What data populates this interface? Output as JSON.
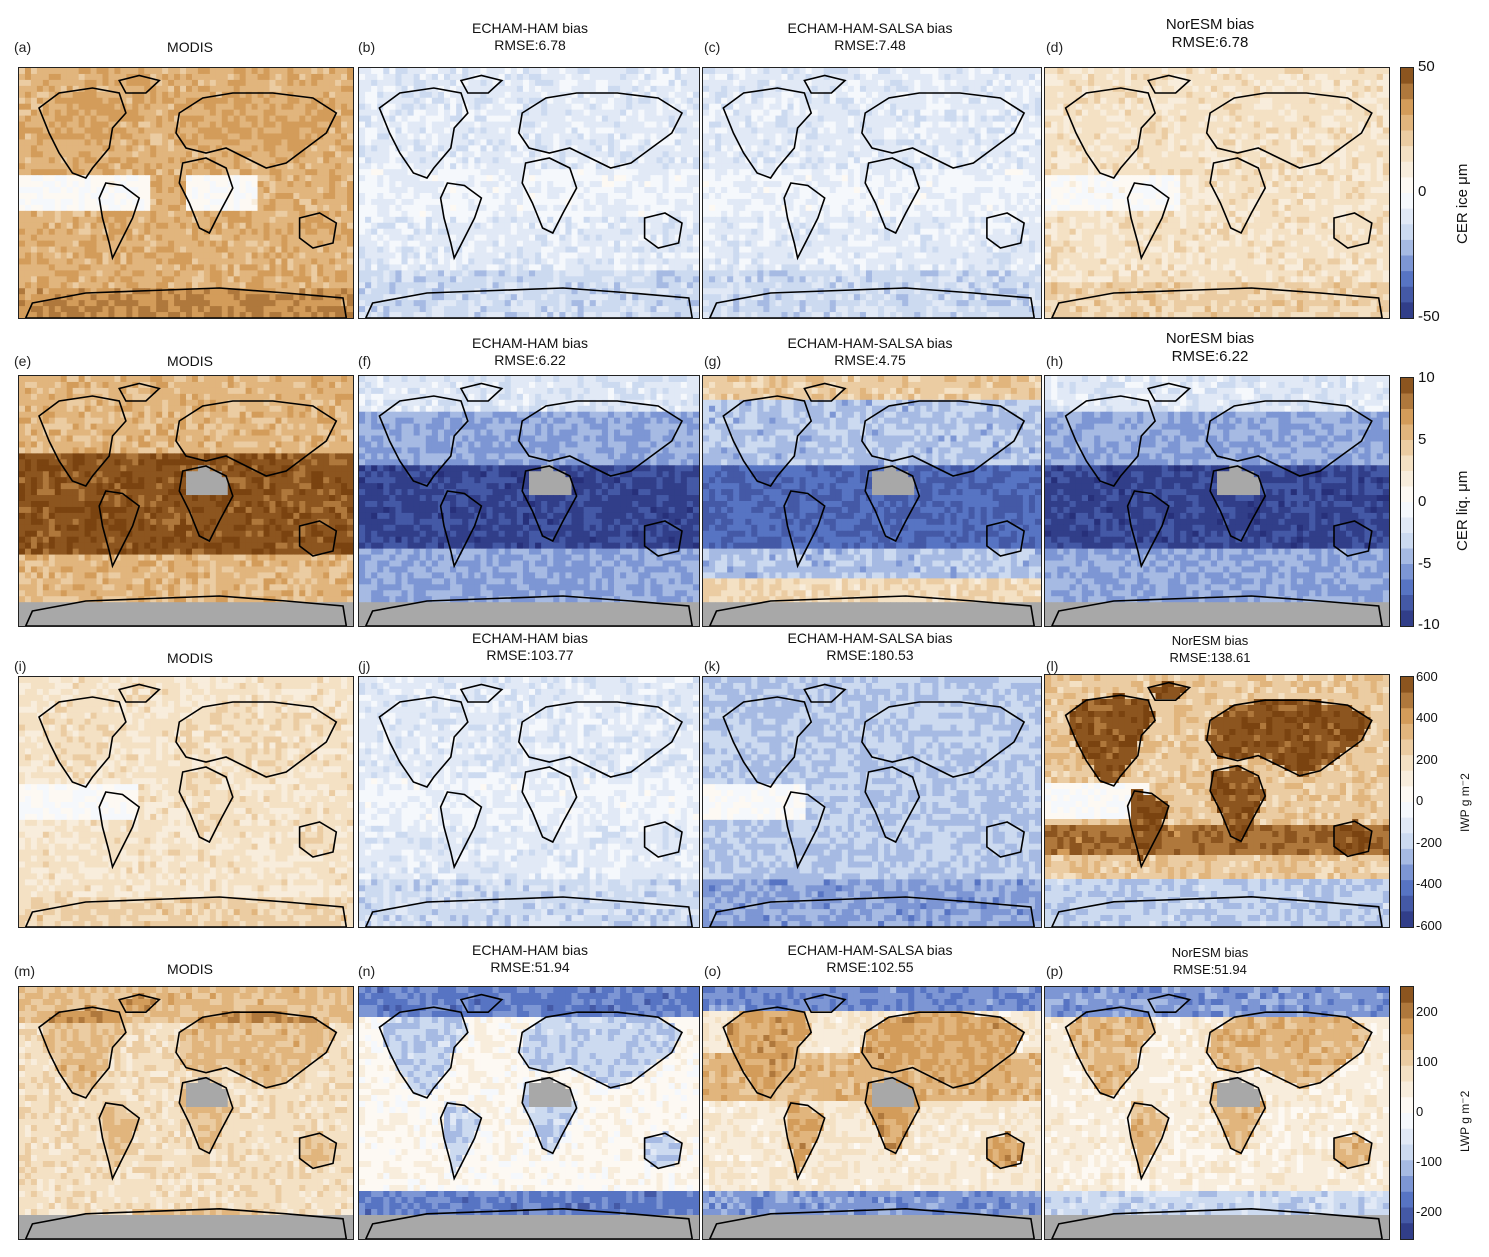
{
  "palette": {
    "negative_dark": "#27307a",
    "negative_mid": "#5a78c8",
    "negative_light": "#c9d8ef",
    "zero": "#ffffff",
    "positive_light": "#f3dfc0",
    "positive_mid": "#d9a25f",
    "positive_dark": "#7a4310",
    "land_mask": "#a8a8a8",
    "coast": "#000000"
  },
  "rows": [
    {
      "colorbar": {
        "label": "CER ice μm",
        "ticks": [
          "50",
          "0",
          "-50"
        ],
        "range": [
          -50,
          50
        ],
        "levels": 16,
        "label_size": "normal"
      },
      "panels": [
        {
          "letter": "(a)",
          "title": [
            "MODIS"
          ],
          "field": "modis-ice"
        },
        {
          "letter": "(b)",
          "title": [
            "ECHAM-HAM bias",
            "RMSE:6.78"
          ],
          "field": "slight-neg"
        },
        {
          "letter": "(c)",
          "title": [
            "ECHAM-HAM-SALSA bias",
            "RMSE:7.48"
          ],
          "field": "slight-neg"
        },
        {
          "letter": "(d)",
          "title": [
            "NorESM bias",
            "RMSE:6.78"
          ],
          "field": "pos-moderate"
        }
      ]
    },
    {
      "colorbar": {
        "label": "CER liq. μm",
        "ticks": [
          "10",
          "5",
          "0",
          "-5",
          "-10"
        ],
        "range": [
          -10,
          10
        ],
        "levels": 16,
        "label_size": "normal"
      },
      "panels": [
        {
          "letter": "(e)",
          "title": [
            "MODIS"
          ],
          "field": "modis-liq"
        },
        {
          "letter": "(f)",
          "title": [
            "ECHAM-HAM bias",
            "RMSE:6.22"
          ],
          "field": "strong-neg"
        },
        {
          "letter": "(g)",
          "title": [
            "ECHAM-HAM-SALSA bias",
            "RMSE:4.75"
          ],
          "field": "mixed-neg"
        },
        {
          "letter": "(h)",
          "title": [
            "NorESM bias",
            "RMSE:6.22"
          ],
          "field": "strong-neg"
        }
      ]
    },
    {
      "colorbar": {
        "label": "IWP g m⁻2",
        "ticks": [
          "600",
          "400",
          "200",
          "0",
          "-200",
          "-400",
          "-600"
        ],
        "range": [
          -600,
          600
        ],
        "levels": 16,
        "label_size": "small"
      },
      "panels": [
        {
          "letter": "(i)",
          "title": [
            "MODIS"
          ],
          "field": "modis-light"
        },
        {
          "letter": "(j)",
          "title": [
            "ECHAM-HAM bias",
            "RMSE:103.77"
          ],
          "field": "slight-neg"
        },
        {
          "letter": "(k)",
          "title": [
            "ECHAM-HAM-SALSA bias",
            "RMSE:180.53"
          ],
          "field": "mod-neg"
        },
        {
          "letter": "(l)",
          "title": [
            "NorESM bias",
            "RMSE:138.61"
          ],
          "field": "pos-strong"
        }
      ]
    },
    {
      "colorbar": {
        "label": "LWP g m⁻2",
        "ticks": [
          "200",
          "100",
          "0",
          "-100",
          "-200"
        ],
        "range": [
          -250,
          250
        ],
        "levels": 16,
        "label_size": "small"
      },
      "panels": [
        {
          "letter": "(m)",
          "title": [
            "MODIS"
          ],
          "field": "modis-lwp"
        },
        {
          "letter": "(n)",
          "title": [
            "ECHAM-HAM bias",
            "RMSE:51.94"
          ],
          "field": "mixed-lwp-n"
        },
        {
          "letter": "(o)",
          "title": [
            "ECHAM-HAM-SALSA bias",
            "RMSE:102.55"
          ],
          "field": "mixed-lwp-o"
        },
        {
          "letter": "(p)",
          "title": [
            "NorESM bias",
            "RMSE:51.94"
          ],
          "field": "mixed-lwp-p"
        }
      ]
    }
  ]
}
